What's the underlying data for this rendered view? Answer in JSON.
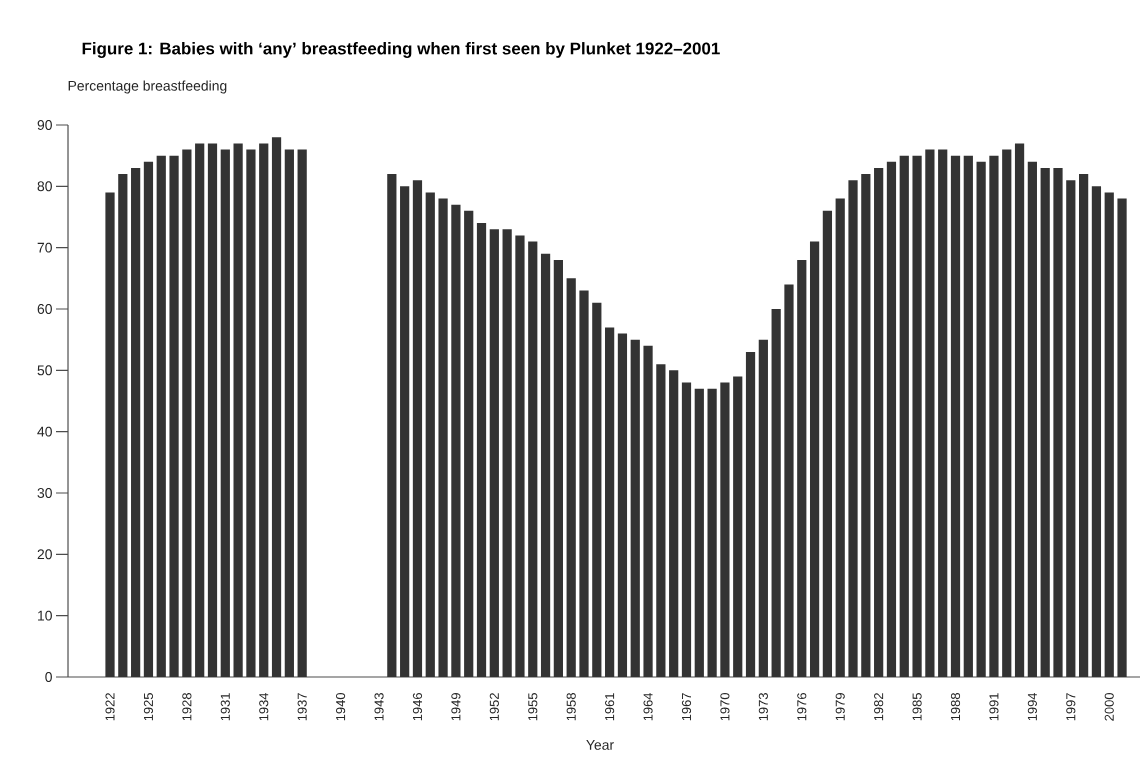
{
  "chart_data": {
    "type": "bar",
    "title": "Figure 1: Babies with ‘any’ breastfeeding when first seen by Plunket 1922–2001",
    "ylabel": "Percentage breastfeeding",
    "xlabel": "Year",
    "categories": [
      "1922",
      null,
      null,
      "1925",
      null,
      null,
      "1928",
      null,
      null,
      "1931",
      null,
      null,
      "1934",
      null,
      null,
      "1937",
      null,
      null,
      "1940",
      null,
      null,
      "1943",
      null,
      null,
      "1946",
      null,
      null,
      "1949",
      null,
      null,
      "1952",
      null,
      null,
      "1955",
      null,
      null,
      "1958",
      null,
      null,
      "1961",
      null,
      null,
      "1964",
      null,
      null,
      "1967",
      null,
      null,
      "1970",
      null,
      null,
      "1973",
      null,
      null,
      "1976",
      null,
      null,
      "1979",
      null,
      null,
      "1982",
      null,
      null,
      "1985",
      null,
      null,
      "1988",
      null,
      null,
      "1991",
      null,
      null,
      "1994",
      null,
      null,
      "1997",
      null,
      null,
      "2000",
      null
    ],
    "values": [
      79,
      82,
      83,
      84,
      85,
      85,
      86,
      87,
      87,
      86,
      87,
      86,
      87,
      88,
      86,
      86,
      null,
      null,
      null,
      null,
      null,
      null,
      82,
      80,
      81,
      79,
      78,
      77,
      76,
      74,
      73,
      73,
      72,
      71,
      69,
      68,
      65,
      63,
      61,
      57,
      56,
      55,
      54,
      51,
      50,
      48,
      47,
      47,
      48,
      49,
      53,
      55,
      60,
      64,
      68,
      71,
      76,
      78,
      81,
      82,
      83,
      84,
      85,
      85,
      86,
      86,
      85,
      85,
      84,
      85,
      86,
      87,
      84,
      83,
      83,
      81,
      82,
      80,
      79,
      78
    ],
    "color": "#333333",
    "ylim": [
      0,
      90
    ],
    "yticks": [
      0,
      10,
      20,
      30,
      40,
      50,
      60,
      70,
      80,
      90
    ]
  }
}
